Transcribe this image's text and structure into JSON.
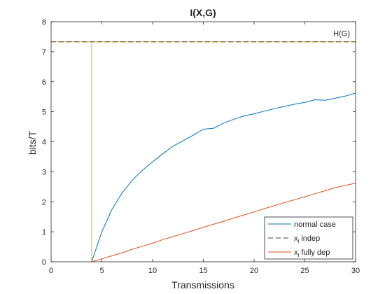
{
  "chart_data": {
    "type": "line",
    "title": "I(X,G)",
    "xlabel": "Transmissions",
    "ylabel": "bits/T",
    "xlim": [
      0,
      30
    ],
    "ylim": [
      0,
      8
    ],
    "xticks": [
      0,
      5,
      10,
      15,
      20,
      25,
      30
    ],
    "yticks": [
      0,
      1,
      2,
      3,
      4,
      5,
      6,
      7,
      8
    ],
    "grid": false,
    "legend_position": "bottom-right",
    "reference_line": {
      "label": "H(G)",
      "y": 7.33,
      "color": "#edb120"
    },
    "vertical_line": {
      "x": 4,
      "y_range": [
        0,
        7.33
      ],
      "color": "#edb120"
    },
    "series": [
      {
        "name": "normal case",
        "color": "#0072bd",
        "style": "solid",
        "x": [
          4,
          5,
          6,
          7,
          8,
          9,
          10,
          11,
          12,
          13,
          14,
          15,
          16,
          17,
          18,
          19,
          20,
          21,
          22,
          23,
          24,
          25,
          26,
          27,
          28,
          29,
          30
        ],
        "y": [
          0,
          1.0,
          1.75,
          2.3,
          2.72,
          3.05,
          3.33,
          3.6,
          3.85,
          4.03,
          4.22,
          4.42,
          4.45,
          4.62,
          4.75,
          4.86,
          4.93,
          5.02,
          5.1,
          5.18,
          5.25,
          5.31,
          5.4,
          5.38,
          5.45,
          5.52,
          5.62
        ]
      },
      {
        "name": "x_i indep",
        "color": "#404040",
        "style": "dashed",
        "x": [
          0,
          30
        ],
        "y": [
          7.33,
          7.33
        ]
      },
      {
        "name": "x_i fully dep",
        "color": "#d95319",
        "style": "solid",
        "x": [
          4,
          5,
          6,
          7,
          8,
          9,
          10,
          11,
          12,
          13,
          14,
          15,
          16,
          17,
          18,
          19,
          20,
          21,
          22,
          23,
          24,
          25,
          26,
          27,
          28,
          29,
          30
        ],
        "y": [
          0,
          0.1,
          0.2,
          0.3,
          0.42,
          0.52,
          0.62,
          0.74,
          0.84,
          0.94,
          1.04,
          1.15,
          1.25,
          1.35,
          1.46,
          1.56,
          1.66,
          1.77,
          1.87,
          1.97,
          2.07,
          2.17,
          2.27,
          2.37,
          2.47,
          2.55,
          2.62
        ]
      }
    ],
    "legend": [
      {
        "main": "normal case",
        "sub": "",
        "rest": ""
      },
      {
        "main": "x",
        "sub": "i",
        "rest": " indep"
      },
      {
        "main": "x",
        "sub": "i",
        "rest": " fully dep"
      }
    ]
  }
}
